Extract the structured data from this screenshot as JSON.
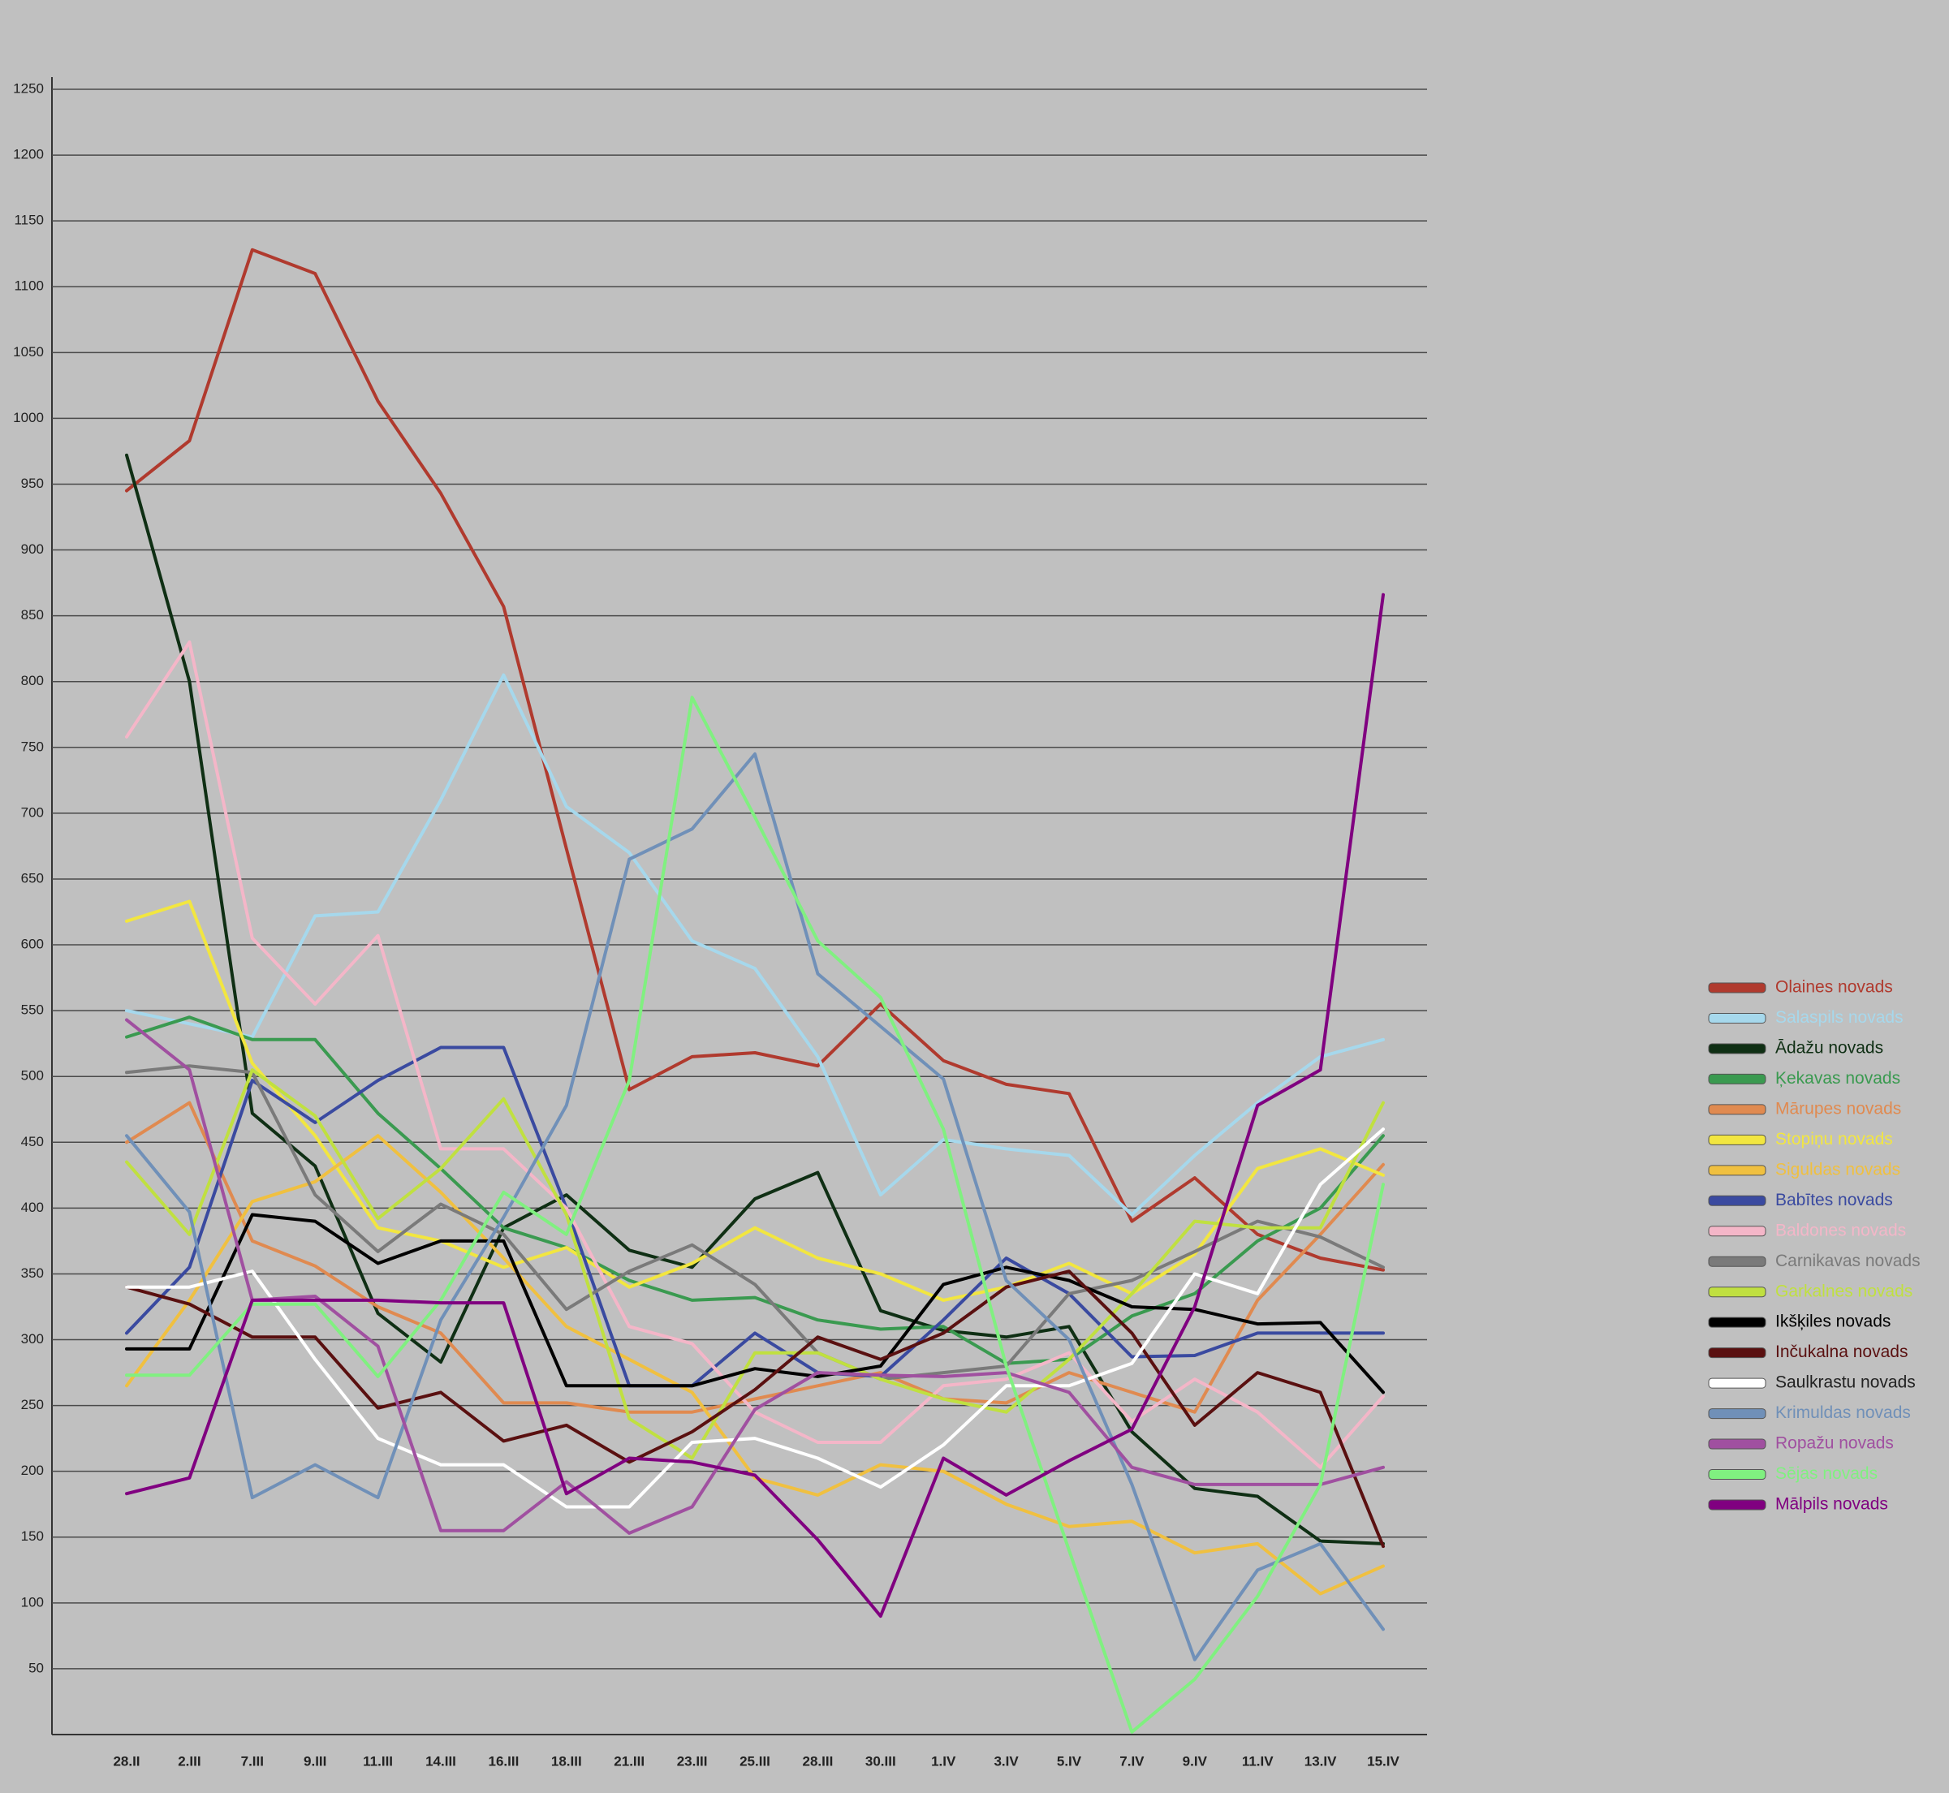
{
  "chart_data": {
    "type": "line",
    "categories": [
      "28.II",
      "2.III",
      "7.III",
      "9.III",
      "11.III",
      "14.III",
      "16.III",
      "18.III",
      "21.III",
      "23.III",
      "25.III",
      "28.III",
      "30.III",
      "1.IV",
      "3.IV",
      "5.IV",
      "7.IV",
      "9.IV",
      "11.IV",
      "13.IV",
      "15.IV"
    ],
    "ylim": [
      0,
      1250
    ],
    "yticks": [
      50,
      100,
      150,
      200,
      250,
      300,
      350,
      400,
      450,
      500,
      550,
      600,
      650,
      700,
      750,
      800,
      850,
      900,
      950,
      1000,
      1050,
      1100,
      1150,
      1200,
      1250
    ],
    "grid": true,
    "series": [
      {
        "name": "Olaines novads",
        "color": "#b03a2e",
        "values": [
          945,
          983,
          1128,
          1110,
          1013,
          943,
          857,
          673,
          490,
          515,
          518,
          508,
          555,
          512,
          494,
          487,
          390,
          423,
          380,
          362,
          353
        ]
      },
      {
        "name": "Salaspils novads",
        "color": "#a6d8ec",
        "values": [
          550,
          540,
          530,
          622,
          625,
          710,
          805,
          705,
          670,
          603,
          582,
          515,
          410,
          452,
          445,
          440,
          395,
          440,
          480,
          515,
          528
        ]
      },
      {
        "name": "Ādažu novads",
        "color": "#0f2f14",
        "values": [
          972,
          800,
          472,
          432,
          320,
          283,
          385,
          410,
          368,
          355,
          407,
          427,
          322,
          307,
          302,
          310,
          230,
          187,
          181,
          147,
          145
        ]
      },
      {
        "name": "Ķekavas novads",
        "color": "#3a9a50",
        "values": [
          530,
          545,
          528,
          528,
          472,
          430,
          385,
          370,
          345,
          330,
          332,
          315,
          308,
          310,
          282,
          285,
          318,
          335,
          375,
          400,
          455
        ]
      },
      {
        "name": "Mārupes novads",
        "color": "#e08a50",
        "values": [
          450,
          480,
          375,
          356,
          325,
          305,
          252,
          252,
          245,
          245,
          255,
          265,
          275,
          255,
          252,
          275,
          260,
          245,
          330,
          380,
          433
        ]
      },
      {
        "name": "Stopiņu novads",
        "color": "#f2e640",
        "values": [
          618,
          633,
          510,
          455,
          385,
          375,
          355,
          370,
          340,
          358,
          385,
          362,
          350,
          330,
          340,
          358,
          335,
          365,
          430,
          445,
          425
        ]
      },
      {
        "name": "Siguldas novads",
        "color": "#f0c040",
        "values": [
          265,
          330,
          405,
          420,
          455,
          412,
          362,
          310,
          285,
          260,
          195,
          182,
          205,
          200,
          175,
          158,
          162,
          138,
          145,
          107,
          128
        ]
      },
      {
        "name": "Babītes novads",
        "color": "#3a4aa0",
        "values": [
          305,
          355,
          497,
          465,
          497,
          522,
          522,
          400,
          265,
          265,
          305,
          275,
          272,
          315,
          362,
          335,
          287,
          288,
          305,
          305,
          305
        ]
      },
      {
        "name": "Baldones novads",
        "color": "#f4b6c8",
        "values": [
          758,
          830,
          605,
          555,
          607,
          445,
          445,
          400,
          310,
          297,
          245,
          222,
          222,
          265,
          270,
          290,
          238,
          270,
          245,
          203,
          257
        ]
      },
      {
        "name": "Carnikavas novads",
        "color": "#7a7a7a",
        "values": [
          503,
          508,
          503,
          410,
          367,
          403,
          380,
          323,
          352,
          372,
          342,
          290,
          270,
          275,
          280,
          335,
          345,
          367,
          390,
          378,
          355
        ]
      },
      {
        "name": "Garkalnes novads",
        "color": "#c0e040",
        "values": [
          435,
          380,
          505,
          470,
          392,
          430,
          483,
          395,
          240,
          210,
          290,
          290,
          270,
          255,
          245,
          285,
          335,
          390,
          385,
          385,
          480
        ]
      },
      {
        "name": "Ikšķiles novads",
        "color": "#000000",
        "values": [
          293,
          293,
          395,
          390,
          358,
          375,
          375,
          265,
          265,
          265,
          278,
          272,
          280,
          342,
          355,
          345,
          325,
          323,
          312,
          313,
          260
        ]
      },
      {
        "name": "Inčukalna novads",
        "color": "#5a1010",
        "values": [
          340,
          327,
          302,
          302,
          248,
          260,
          223,
          235,
          207,
          230,
          262,
          302,
          285,
          305,
          340,
          352,
          305,
          235,
          275,
          260,
          143
        ]
      },
      {
        "name": "Saulkrastu novads",
        "color": "#ffffff",
        "values": [
          340,
          340,
          352,
          285,
          225,
          205,
          205,
          173,
          173,
          222,
          225,
          210,
          188,
          220,
          265,
          265,
          282,
          350,
          335,
          418,
          460
        ]
      },
      {
        "name": "Krimuldas novads",
        "color": "#7090b8",
        "values": [
          455,
          397,
          180,
          205,
          180,
          315,
          393,
          478,
          665,
          688,
          745,
          578,
          538,
          498,
          345,
          300,
          190,
          57,
          125,
          145,
          80
        ]
      },
      {
        "name": "Ropažu novads",
        "color": "#a050a0",
        "values": [
          543,
          505,
          330,
          333,
          295,
          155,
          155,
          192,
          153,
          173,
          247,
          275,
          273,
          272,
          275,
          260,
          203,
          190,
          190,
          190,
          203
        ]
      },
      {
        "name": "Sējas novads",
        "color": "#80f080",
        "values": [
          273,
          273,
          327,
          327,
          272,
          330,
          412,
          380,
          497,
          788,
          697,
          603,
          560,
          460,
          280,
          140,
          2,
          42,
          105,
          190,
          418
        ]
      },
      {
        "name": "Mālpils novads",
        "color": "#800080",
        "values": [
          183,
          195,
          330,
          330,
          330,
          328,
          328,
          183,
          210,
          207,
          197,
          148,
          90,
          210,
          182,
          208,
          232,
          325,
          478,
          505,
          866
        ]
      }
    ]
  }
}
